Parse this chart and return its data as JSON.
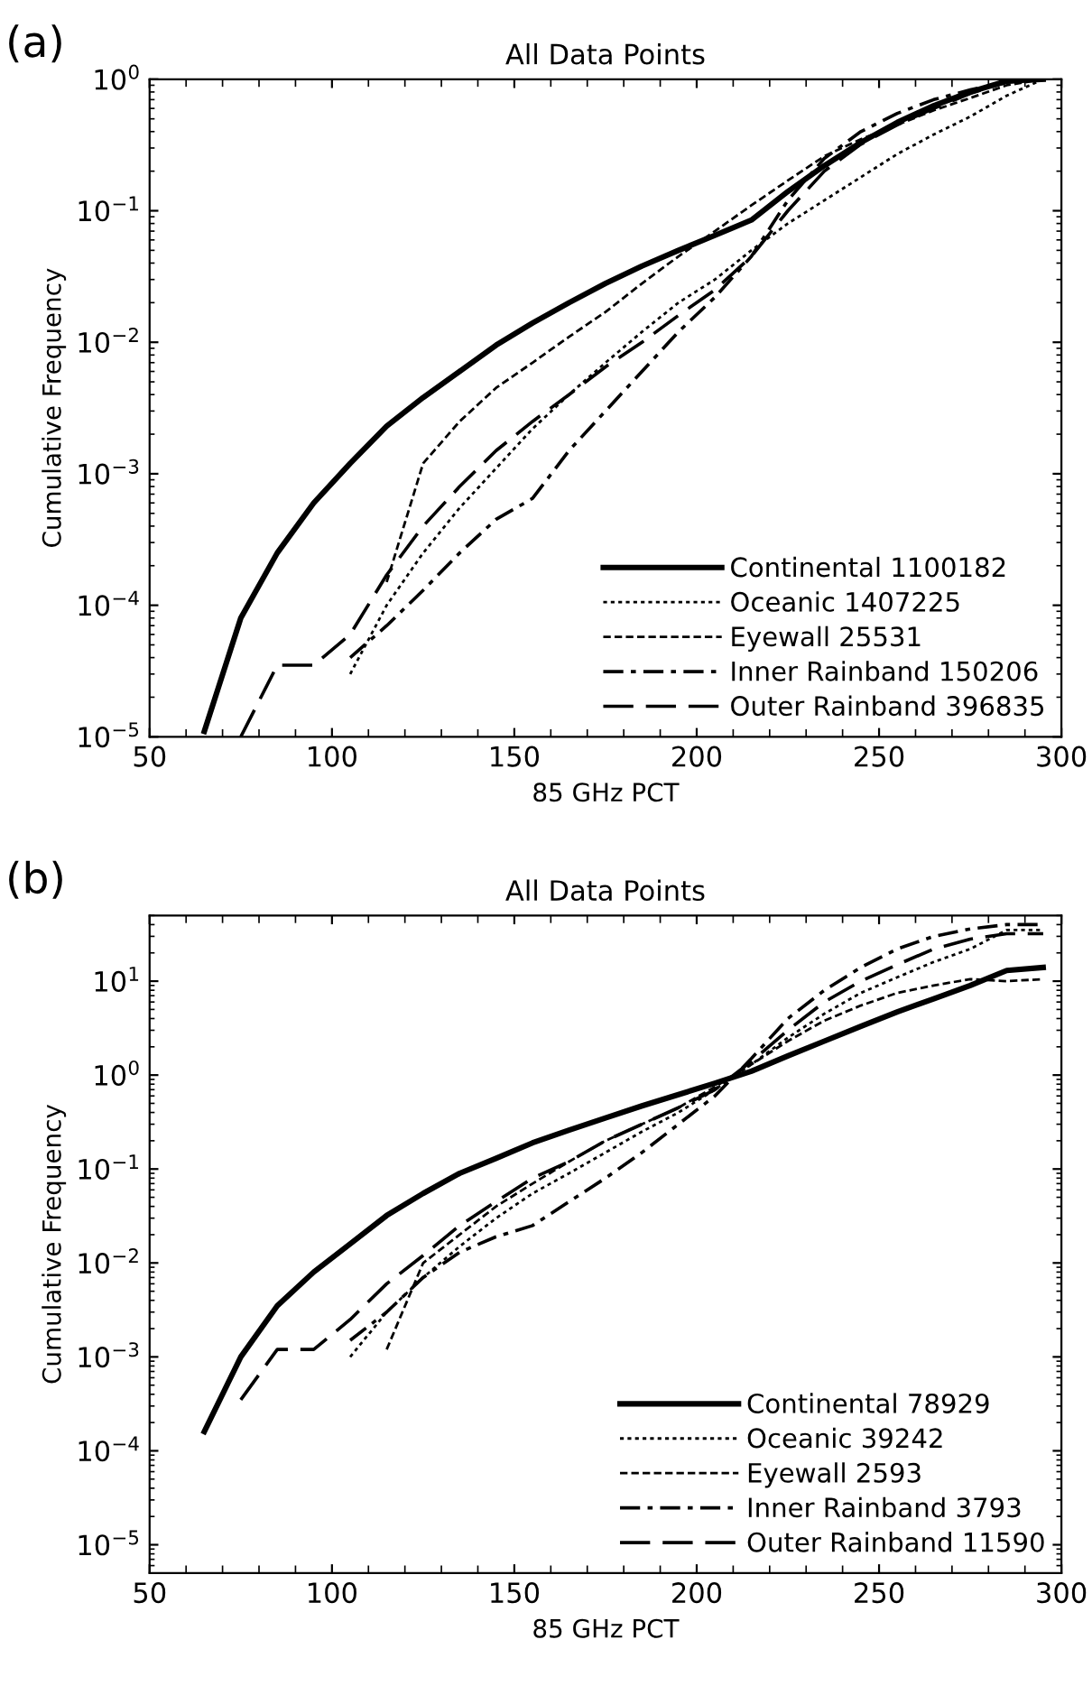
{
  "chart_data": [
    {
      "type": "line",
      "title": "All Data Points",
      "xlabel": "85 GHz PCT",
      "ylabel": "Cumulative Frequency",
      "annotations": [
        "(a)"
      ],
      "log": "y",
      "legend": "bottom right",
      "grid": false,
      "x": [
        65,
        75,
        85,
        95,
        105,
        115,
        125,
        135,
        145,
        155,
        165,
        175,
        185,
        195,
        205,
        215,
        225,
        235,
        245,
        255,
        265,
        275,
        285,
        295
      ],
      "xlim": [
        50,
        300
      ],
      "xticks": [
        50,
        100,
        150,
        200,
        250,
        300
      ],
      "ylim": [
        1e-05,
        1
      ],
      "yticks": [
        {
          "value": 1e-05,
          "label": "10$^{−5}$"
        },
        {
          "value": 0.0001,
          "label": "10$^{−4}$"
        },
        {
          "value": 0.001,
          "label": "10$^{−3}$"
        },
        {
          "value": 0.01,
          "label": "10$^{−2}$"
        },
        {
          "value": 0.1,
          "label": "10$^{−1}$"
        },
        {
          "value": 1,
          "label": "10$^{0}$"
        }
      ],
      "series": [
        {
          "name": "Continental 1100182",
          "color": "#000000",
          "line_style": "solid",
          "values": [
            1.1e-05,
            8e-05,
            0.00025,
            0.0006,
            0.0012,
            0.0023,
            0.0038,
            0.006,
            0.0095,
            0.014,
            0.02,
            0.028,
            0.038,
            0.05,
            0.065,
            0.085,
            0.14,
            0.22,
            0.33,
            0.47,
            0.63,
            0.8,
            0.97,
            1.0
          ]
        },
        {
          "name": "Oceanic 1407225",
          "color": "#000000",
          "line_style": "dotted",
          "values": [
            null,
            null,
            null,
            null,
            3e-05,
            0.0001,
            0.00025,
            0.00055,
            0.0011,
            0.0022,
            0.004,
            0.007,
            0.012,
            0.02,
            0.03,
            0.05,
            0.08,
            0.12,
            0.18,
            0.27,
            0.38,
            0.52,
            0.75,
            1.0
          ]
        },
        {
          "name": "Eyewall 25531",
          "color": "#000000",
          "line_style": "dashed",
          "values": [
            null,
            null,
            null,
            null,
            null,
            0.00015,
            0.0012,
            0.0025,
            0.0045,
            0.007,
            0.011,
            0.017,
            0.028,
            0.045,
            0.07,
            0.11,
            0.17,
            0.26,
            0.35,
            0.45,
            0.58,
            0.72,
            0.9,
            1.0
          ]
        },
        {
          "name": "Inner Rainband 150206",
          "color": "#000000",
          "line_style": "dashdot",
          "values": [
            null,
            null,
            null,
            null,
            4e-05,
            7e-05,
            0.00013,
            0.00025,
            0.00045,
            0.00065,
            0.0015,
            0.003,
            0.006,
            0.012,
            0.022,
            0.045,
            0.12,
            0.25,
            0.4,
            0.55,
            0.7,
            0.83,
            0.95,
            1.0
          ]
        },
        {
          "name": "Outer Rainband 396835",
          "color": "#000000",
          "line_style": "longdash",
          "values": [
            null,
            1e-05,
            3.5e-05,
            3.5e-05,
            6e-05,
            0.00017,
            0.0004,
            0.0008,
            0.0015,
            0.0025,
            0.004,
            0.0065,
            0.01,
            0.016,
            0.025,
            0.045,
            0.1,
            0.2,
            0.32,
            0.45,
            0.6,
            0.78,
            0.95,
            1.0
          ]
        }
      ]
    },
    {
      "type": "line",
      "title": "All Data Points",
      "xlabel": "85 GHz PCT",
      "ylabel": "Cumulative Frequency",
      "annotations": [
        "(b)"
      ],
      "log": "y",
      "legend": "bottom right",
      "grid": false,
      "x": [
        65,
        75,
        85,
        95,
        105,
        115,
        125,
        135,
        145,
        155,
        165,
        175,
        185,
        195,
        205,
        215,
        225,
        235,
        245,
        255,
        265,
        275,
        285,
        295
      ],
      "xlim": [
        50,
        300
      ],
      "xticks": [
        50,
        100,
        150,
        200,
        250,
        300
      ],
      "ylim": [
        5e-06,
        50
      ],
      "yticks": [
        {
          "value": 1e-05,
          "label": "10$^{−5}$"
        },
        {
          "value": 0.0001,
          "label": "10$^{−4}$"
        },
        {
          "value": 0.001,
          "label": "10$^{−3}$"
        },
        {
          "value": 0.01,
          "label": "10$^{−2}$"
        },
        {
          "value": 0.1,
          "label": "10$^{−1}$"
        },
        {
          "value": 1,
          "label": "10$^{0}$"
        },
        {
          "value": 10,
          "label": "10$^{1}$"
        }
      ],
      "series": [
        {
          "name": "Continental 78929",
          "color": "#000000",
          "line_style": "solid",
          "values": [
            0.00016,
            0.001,
            0.0035,
            0.008,
            0.016,
            0.032,
            0.055,
            0.09,
            0.13,
            0.19,
            0.26,
            0.35,
            0.47,
            0.62,
            0.82,
            1.1,
            1.6,
            2.3,
            3.3,
            4.7,
            6.5,
            9,
            13,
            14
          ]
        },
        {
          "name": "Oceanic 39242",
          "color": "#000000",
          "line_style": "dotted",
          "values": [
            null,
            null,
            null,
            null,
            0.001,
            0.003,
            0.007,
            0.015,
            0.03,
            0.055,
            0.09,
            0.15,
            0.25,
            0.4,
            0.7,
            1.3,
            2.5,
            4.5,
            7.5,
            11,
            16,
            22,
            35,
            35
          ]
        },
        {
          "name": "Eyewall 2593",
          "color": "#000000",
          "line_style": "dashed",
          "values": [
            null,
            null,
            null,
            null,
            null,
            0.0012,
            0.01,
            0.02,
            0.04,
            0.07,
            0.12,
            0.2,
            0.3,
            0.45,
            0.75,
            1.3,
            2.3,
            3.8,
            5.5,
            7.5,
            9,
            10.5,
            10,
            10.5
          ]
        },
        {
          "name": "Inner Rainband 3793",
          "color": "#000000",
          "line_style": "dashdot",
          "values": [
            null,
            null,
            null,
            null,
            0.0015,
            0.003,
            0.007,
            0.013,
            0.019,
            0.025,
            0.045,
            0.08,
            0.15,
            0.3,
            0.6,
            1.5,
            4,
            8,
            14,
            22,
            30,
            36,
            40,
            40
          ]
        },
        {
          "name": "Outer Rainband 11590",
          "color": "#000000",
          "line_style": "longdash",
          "values": [
            null,
            0.00035,
            0.0012,
            0.0012,
            0.0025,
            0.006,
            0.012,
            0.025,
            0.045,
            0.08,
            0.12,
            0.2,
            0.3,
            0.45,
            0.7,
            1.4,
            3,
            6,
            10,
            15,
            22,
            28,
            32,
            32
          ]
        }
      ]
    }
  ]
}
